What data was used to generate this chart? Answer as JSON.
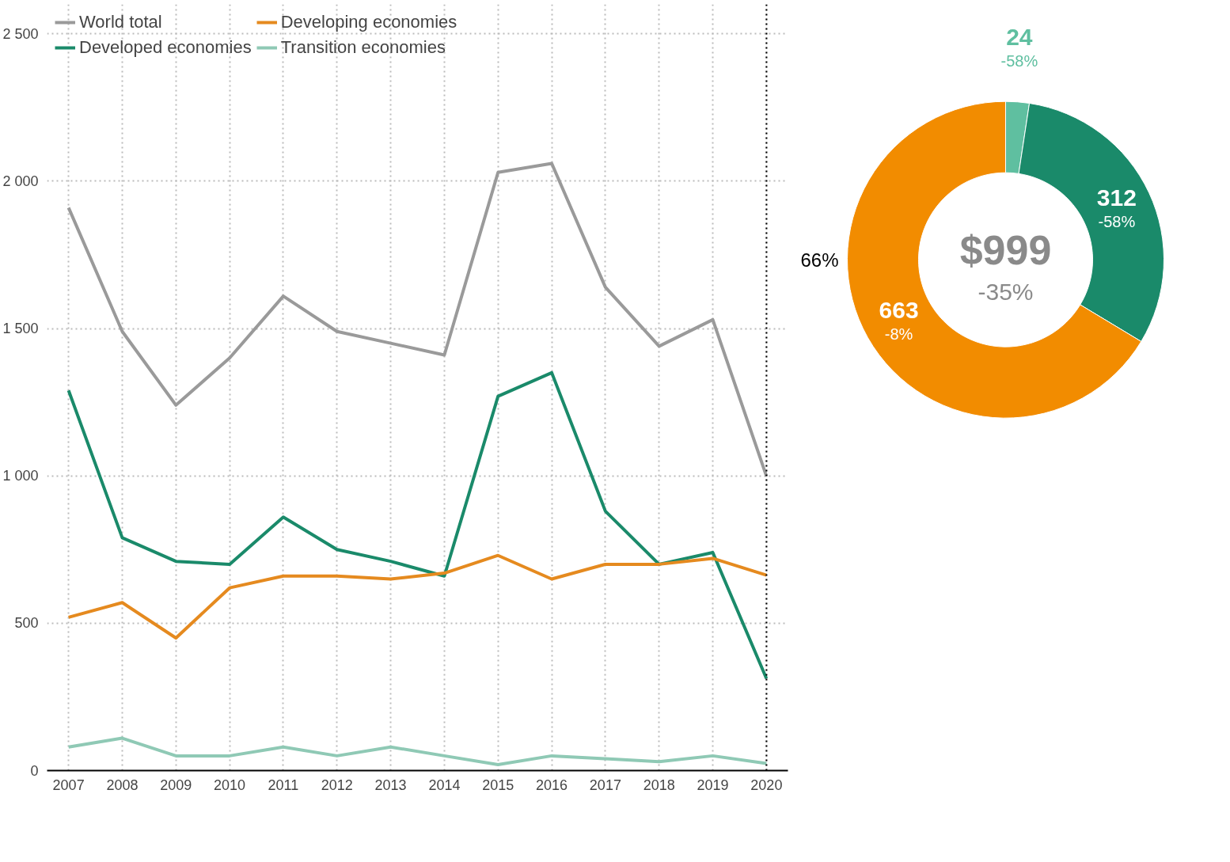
{
  "chart_data": [
    {
      "type": "line",
      "x": [
        2007,
        2008,
        2009,
        2010,
        2011,
        2012,
        2013,
        2014,
        2015,
        2016,
        2017,
        2018,
        2019,
        2020
      ],
      "series": [
        {
          "name": "World total",
          "color": "#9a9a9a",
          "values": [
            1910,
            1490,
            1240,
            1400,
            1610,
            1490,
            1450,
            1410,
            2030,
            2060,
            1640,
            1440,
            1530,
            999
          ]
        },
        {
          "name": "Developed economies",
          "color": "#1a8a6a",
          "values": [
            1290,
            790,
            710,
            700,
            860,
            750,
            710,
            660,
            1270,
            1350,
            880,
            700,
            740,
            312
          ]
        },
        {
          "name": "Developing economies",
          "color": "#e58a1f",
          "values": [
            520,
            570,
            450,
            620,
            660,
            660,
            650,
            670,
            730,
            650,
            700,
            700,
            720,
            663
          ]
        },
        {
          "name": "Transition economies",
          "color": "#8fc9b5",
          "values": [
            80,
            110,
            50,
            50,
            80,
            50,
            80,
            50,
            20,
            50,
            40,
            30,
            50,
            24
          ]
        }
      ],
      "xlim": [
        2006.6,
        2020.4
      ],
      "xticks": [
        2007,
        2008,
        2009,
        2010,
        2011,
        2012,
        2013,
        2014,
        2015,
        2016,
        2017,
        2018,
        2019,
        2020
      ],
      "ylim": [
        0,
        2600
      ],
      "yticks": [
        0,
        500,
        {
          "value": 1000,
          "label": "1 000"
        },
        {
          "value": 1500,
          "label": "1 500"
        },
        {
          "value": 2000,
          "label": "2 000"
        },
        {
          "value": 2500,
          "label": "2 500"
        }
      ],
      "grid": true,
      "legend": "top",
      "line_style": "solid",
      "ref_lines": [
        {
          "axis": "x",
          "value": 2020,
          "line_style": "dotted",
          "color": "#000000"
        }
      ]
    },
    {
      "type": "donut",
      "categories": [
        null,
        null,
        null
      ],
      "values": [
        24,
        312,
        663
      ],
      "colors": [
        "#5fbfa0",
        "#1a8a6a",
        "#f28c00"
      ],
      "value_labels": [
        "24\n-58%",
        "312\n-58%",
        "663\n-8%"
      ],
      "annotations": [
        "$999",
        "-35%",
        "66%"
      ]
    }
  ]
}
